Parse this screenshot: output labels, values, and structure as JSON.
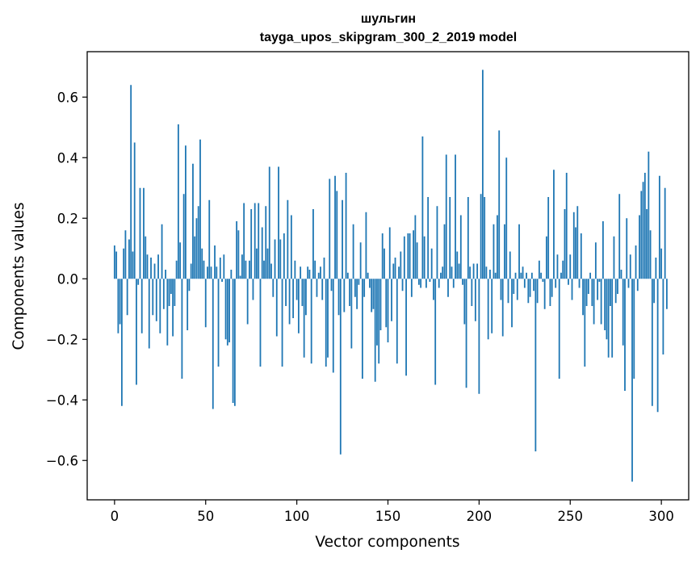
{
  "chart_data": {
    "type": "bar",
    "title_line1": "шульгин",
    "title_line2": "tayga_upos_skipgram_300_2_2019 model",
    "xlabel": "Vector components",
    "ylabel": "Components values",
    "xlim": [
      -15,
      315
    ],
    "ylim": [
      -0.73,
      0.75
    ],
    "xticks": [
      0,
      50,
      100,
      150,
      200,
      250,
      300
    ],
    "xtick_labels": [
      "0",
      "50",
      "100",
      "150",
      "200",
      "250",
      "300"
    ],
    "yticks": [
      -0.6,
      -0.4,
      -0.2,
      0.0,
      0.2,
      0.4,
      0.6
    ],
    "ytick_labels": [
      "−0.6",
      "−0.4",
      "−0.2",
      "0.0",
      "0.2",
      "0.4",
      "0.6"
    ],
    "bar_color": "#1f77b4",
    "grid": false,
    "values": [
      0.11,
      0.09,
      -0.18,
      -0.15,
      -0.42,
      0.1,
      0.16,
      -0.12,
      0.13,
      0.64,
      0.09,
      0.45,
      -0.35,
      -0.02,
      0.3,
      -0.18,
      0.3,
      0.14,
      0.08,
      -0.23,
      0.07,
      -0.12,
      0.05,
      -0.14,
      0.08,
      -0.18,
      0.18,
      -0.1,
      0.03,
      -0.22,
      -0.09,
      -0.05,
      -0.19,
      -0.09,
      0.06,
      0.51,
      0.12,
      -0.33,
      0.28,
      0.44,
      -0.17,
      -0.04,
      0.05,
      0.38,
      0.14,
      0.2,
      0.24,
      0.46,
      0.1,
      0.06,
      -0.16,
      0.04,
      0.26,
      0.04,
      -0.43,
      0.11,
      0.04,
      -0.29,
      0.07,
      -0.01,
      0.08,
      -0.2,
      -0.22,
      -0.21,
      0.03,
      -0.41,
      -0.42,
      0.19,
      0.16,
      0.01,
      0.08,
      0.25,
      0.06,
      -0.15,
      0.06,
      0.23,
      -0.07,
      0.25,
      0.1,
      0.25,
      -0.29,
      0.17,
      0.06,
      0.24,
      0.1,
      0.37,
      0.05,
      -0.06,
      0.13,
      -0.19,
      0.37,
      0.13,
      -0.29,
      0.15,
      -0.09,
      0.26,
      -0.15,
      0.21,
      -0.13,
      0.06,
      -0.07,
      -0.18,
      0.04,
      -0.09,
      -0.26,
      -0.12,
      0.04,
      0.03,
      -0.28,
      0.23,
      0.06,
      -0.06,
      0.02,
      0.04,
      -0.07,
      0.07,
      -0.29,
      -0.26,
      0.33,
      -0.04,
      -0.31,
      0.34,
      0.29,
      -0.12,
      -0.58,
      0.26,
      -0.11,
      0.35,
      0.02,
      -0.09,
      -0.23,
      0.18,
      -0.06,
      -0.1,
      -0.02,
      0.12,
      -0.33,
      -0.06,
      0.22,
      0.02,
      -0.03,
      -0.11,
      -0.1,
      -0.34,
      -0.22,
      -0.28,
      -0.17,
      0.15,
      0.1,
      -0.16,
      -0.21,
      0.17,
      -0.14,
      0.05,
      0.07,
      -0.28,
      0.04,
      0.09,
      -0.04,
      0.14,
      -0.32,
      0.15,
      0.15,
      -0.06,
      0.16,
      0.21,
      0.12,
      -0.02,
      -0.03,
      0.47,
      0.14,
      -0.03,
      0.27,
      -0.01,
      0.1,
      -0.07,
      -0.35,
      0.24,
      -0.03,
      0.02,
      0.04,
      0.18,
      0.41,
      -0.06,
      0.27,
      0.04,
      -0.03,
      0.41,
      0.09,
      0.05,
      0.21,
      -0.02,
      -0.15,
      -0.36,
      0.27,
      0.04,
      -0.09,
      0.05,
      -0.14,
      0.05,
      -0.38,
      0.28,
      0.69,
      0.27,
      0.04,
      -0.2,
      0.03,
      -0.18,
      0.18,
      0.02,
      0.21,
      0.49,
      -0.07,
      -0.19,
      0.18,
      0.4,
      -0.08,
      0.09,
      -0.16,
      -0.05,
      0.02,
      -0.07,
      0.18,
      0.02,
      0.04,
      -0.03,
      0.02,
      -0.08,
      -0.06,
      0.02,
      -0.04,
      -0.57,
      -0.08,
      0.06,
      0.02,
      -0.01,
      -0.1,
      0.14,
      0.27,
      -0.09,
      -0.06,
      0.36,
      -0.03,
      0.08,
      -0.33,
      0.02,
      0.06,
      0.23,
      0.35,
      -0.02,
      0.08,
      -0.07,
      0.22,
      0.17,
      0.24,
      -0.03,
      0.15,
      -0.12,
      -0.29,
      -0.09,
      -0.05,
      0.02,
      -0.09,
      -0.15,
      0.12,
      -0.07,
      -0.01,
      -0.15,
      0.19,
      -0.17,
      -0.2,
      -0.26,
      -0.09,
      -0.26,
      0.14,
      -0.08,
      -0.05,
      0.28,
      0.03,
      -0.22,
      -0.37,
      0.2,
      -0.03,
      0.08,
      -0.67,
      -0.33,
      0.11,
      -0.04,
      0.21,
      0.29,
      0.32,
      0.35,
      0.23,
      0.42,
      0.16,
      -0.42,
      -0.08,
      0.07,
      -0.44,
      0.34,
      0.1,
      -0.25,
      0.3,
      -0.1
    ]
  }
}
